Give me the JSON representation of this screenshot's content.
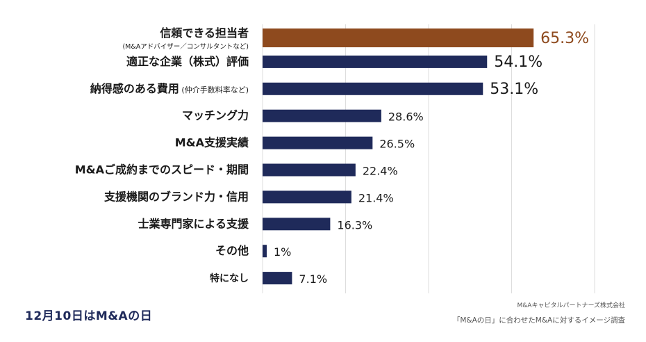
{
  "chart_data": {
    "type": "bar",
    "orientation": "horizontal",
    "categories": [
      {
        "label": "信頼できる担当者",
        "sublabel": "(M&Aアドバイザー／コンサルタントなど)"
      },
      {
        "label": "適正な企業（株式）評価",
        "sublabel": ""
      },
      {
        "label": "納得感のある費用",
        "note": "(仲介手数料率など)"
      },
      {
        "label": "マッチング力"
      },
      {
        "label": "M&A支援実績"
      },
      {
        "label": "M&Aご成約までのスピード・期間"
      },
      {
        "label": "支援機関のブランド力・信用"
      },
      {
        "label": "士業専門家による支援"
      },
      {
        "label": "その他"
      },
      {
        "label": "特になし"
      }
    ],
    "values": [
      65.3,
      54.1,
      53.1,
      28.6,
      26.5,
      22.4,
      21.4,
      16.3,
      1,
      7.1
    ],
    "value_labels": [
      "65.3%",
      "54.1%",
      "53.1%",
      "28.6%",
      "26.5%",
      "22.4%",
      "21.4%",
      "16.3%",
      "1%",
      "7.1%"
    ],
    "xlim": [
      0,
      80
    ],
    "grid": true,
    "colors": {
      "highlight": "#8e4a1e",
      "bar": "#1f2a5a",
      "grid": "#dddddd"
    }
  },
  "footer": {
    "left": "12月10日はM&Aの日",
    "company": "M&Aキャピタルパートナーズ株式会社",
    "survey": "「M&Aの日」に合わせたM&Aに対するイメージ調査"
  }
}
